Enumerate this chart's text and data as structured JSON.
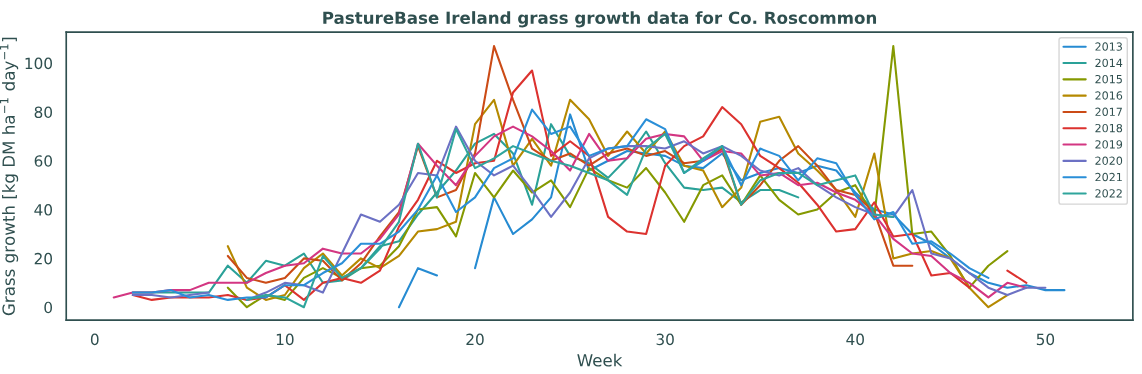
{
  "chart_data": {
    "type": "line",
    "title": "PastureBase Ireland grass growth data for Co. Roscommon",
    "xlabel": "Week",
    "ylabel": "Grass growth [kg DM ha$^{−1}$ day$^{−1}$]",
    "xlim": [
      -1.5,
      54.6
    ],
    "xticks": [
      0,
      10,
      20,
      30,
      40,
      50
    ],
    "ylim": [
      -5.3,
      112.7
    ],
    "yticks": [
      0,
      20,
      40,
      60,
      80,
      100
    ],
    "grid": false,
    "legend": "top right",
    "marker": "none",
    "line_style": "solid",
    "series": [
      {
        "name": "2013",
        "color": "#268bd2",
        "x": [
          16,
          17,
          18,
          19,
          20,
          21,
          22,
          23,
          24,
          25,
          26,
          27,
          28,
          29,
          30,
          31,
          32,
          33,
          34,
          35,
          36,
          37,
          38,
          39,
          40,
          41,
          42,
          43,
          44,
          45,
          46,
          47,
          48,
          49,
          50,
          51
        ],
        "values": [
          0,
          16,
          13,
          null,
          16,
          45,
          30,
          36,
          45,
          79,
          56,
          60,
          64,
          63,
          62,
          58,
          57,
          63,
          52,
          55,
          57,
          55,
          58,
          56,
          47,
          40,
          38,
          30,
          26,
          20,
          14,
          10,
          8,
          9,
          7,
          7
        ]
      },
      {
        "name": "2014",
        "color": "#2aa198",
        "x": [
          2,
          3,
          4,
          5,
          6,
          7,
          8,
          9,
          10,
          11,
          12,
          13,
          14,
          15,
          16,
          17,
          18,
          19,
          20,
          21,
          22,
          23,
          24,
          25,
          26,
          27,
          28,
          29,
          30,
          31,
          32,
          33,
          34,
          35,
          36,
          37
        ],
        "values": [
          6,
          6,
          6,
          6,
          6,
          17,
          10,
          19,
          17,
          22,
          10,
          11,
          16,
          25,
          27,
          38,
          47,
          56,
          67,
          71,
          63,
          42,
          75,
          62,
          59,
          53,
          61,
          72,
          59,
          49,
          48,
          49,
          43,
          48,
          48,
          45
        ]
      },
      {
        "name": "2015",
        "color": "#859900",
        "x": [
          7,
          8,
          9,
          10,
          11,
          12,
          13,
          14,
          15,
          16,
          17,
          18,
          19,
          20,
          21,
          22,
          23,
          24,
          25,
          26,
          27,
          28,
          29,
          30,
          31,
          32,
          33,
          34,
          35,
          36,
          37,
          38,
          39,
          40,
          41,
          42,
          43,
          44,
          45,
          46,
          47,
          48
        ],
        "values": [
          8,
          0,
          5,
          3,
          12,
          16,
          12,
          16,
          17,
          25,
          40,
          41,
          29,
          55,
          45,
          56,
          47,
          52,
          41,
          57,
          52,
          49,
          57,
          47,
          35,
          50,
          54,
          42,
          54,
          44,
          38,
          40,
          47,
          50,
          37,
          107,
          30,
          31,
          21,
          8,
          17,
          23
        ]
      },
      {
        "name": "2016",
        "color": "#b58900",
        "x": [
          7,
          8,
          9,
          10,
          11,
          12,
          13,
          14,
          15,
          16,
          17,
          18,
          19,
          20,
          21,
          22,
          23,
          24,
          25,
          26,
          27,
          28,
          29,
          30,
          31,
          32,
          33,
          34,
          35,
          36,
          37,
          38,
          39,
          40,
          41,
          42,
          43,
          44,
          45,
          46,
          47,
          48
        ],
        "values": [
          25,
          8,
          3,
          5,
          16,
          22,
          13,
          20,
          16,
          21,
          31,
          32,
          35,
          75,
          85,
          58,
          69,
          58,
          85,
          77,
          62,
          72,
          63,
          72,
          58,
          56,
          41,
          49,
          76,
          78,
          63,
          56,
          48,
          37,
          63,
          20,
          22,
          23,
          20,
          8,
          0,
          5
        ]
      },
      {
        "name": "2017",
        "color": "#cb4b16",
        "x": [
          7,
          8,
          9,
          10,
          11,
          12,
          13,
          14,
          15,
          16,
          17,
          18,
          19,
          20,
          21,
          22,
          23,
          24,
          25,
          26,
          27,
          28,
          29,
          30,
          31,
          32,
          33,
          34,
          35,
          36,
          37,
          38,
          39,
          40,
          41,
          42,
          43
        ],
        "values": [
          21,
          12,
          10,
          12,
          20,
          19,
          11,
          18,
          29,
          39,
          66,
          45,
          48,
          63,
          107,
          85,
          65,
          60,
          63,
          58,
          63,
          65,
          62,
          64,
          59,
          60,
          65,
          42,
          50,
          60,
          66,
          58,
          48,
          46,
          39,
          17,
          17
        ]
      },
      {
        "name": "2018",
        "color": "#dc322f",
        "x": [
          2,
          3,
          4,
          5,
          6,
          7,
          8,
          9,
          10,
          11,
          12,
          13,
          14,
          15,
          16,
          17,
          18,
          19,
          20,
          21,
          22,
          23,
          24,
          25,
          26,
          27,
          28,
          29,
          30,
          31,
          32,
          33,
          34,
          35,
          36,
          37,
          38,
          39,
          40,
          41,
          42,
          43,
          44,
          45,
          46,
          47,
          48,
          49
        ],
        "values": [
          5,
          3,
          4,
          4,
          4,
          5,
          3,
          4,
          9,
          3,
          10,
          12,
          10,
          15,
          33,
          44,
          60,
          55,
          59,
          60,
          88,
          97,
          62,
          68,
          62,
          37,
          31,
          30,
          58,
          66,
          70,
          82,
          75,
          62,
          57,
          51,
          42,
          31,
          32,
          43,
          29,
          30,
          13,
          14,
          8,
          null,
          15,
          10
        ]
      },
      {
        "name": "2019",
        "color": "#d33682",
        "x": [
          1,
          2,
          3,
          4,
          5,
          6,
          7,
          8,
          9,
          10,
          11,
          12,
          13,
          14,
          15,
          16,
          17,
          18,
          19,
          20,
          21,
          22,
          23,
          24,
          25,
          26,
          27,
          28,
          29,
          30,
          31,
          32,
          33,
          34,
          35,
          36,
          37,
          38,
          39,
          40,
          41,
          42,
          43,
          44,
          45,
          46,
          47,
          48,
          49
        ],
        "values": [
          4,
          6,
          6,
          7,
          7,
          10,
          10,
          10,
          14,
          17,
          18,
          24,
          22,
          22,
          28,
          38,
          67,
          58,
          50,
          62,
          70,
          74,
          70,
          64,
          56,
          71,
          60,
          61,
          69,
          71,
          70,
          60,
          64,
          63,
          54,
          55,
          50,
          51,
          47,
          44,
          38,
          28,
          22,
          21,
          14,
          10,
          4,
          10,
          8
        ]
      },
      {
        "name": "2020",
        "color": "#6c71c4",
        "x": [
          2,
          3,
          4,
          5,
          6,
          7,
          8,
          9,
          10,
          11,
          12,
          13,
          14,
          15,
          16,
          17,
          18,
          19,
          20,
          21,
          22,
          23,
          24,
          25,
          26,
          27,
          28,
          29,
          30,
          31,
          32,
          33,
          34,
          35,
          36,
          37,
          38,
          39,
          40,
          41,
          42,
          43,
          44,
          45,
          46,
          47,
          48,
          49,
          50
        ],
        "values": [
          5,
          5,
          4,
          5,
          6,
          null,
          3,
          6,
          10,
          9,
          6,
          22,
          38,
          35,
          42,
          55,
          54,
          74,
          60,
          54,
          58,
          48,
          37,
          47,
          61,
          65,
          66,
          66,
          65,
          68,
          63,
          66,
          62,
          56,
          54,
          57,
          50,
          45,
          41,
          38,
          37,
          48,
          22,
          20,
          14,
          8,
          5,
          8,
          8
        ]
      },
      {
        "name": "2021",
        "color": "#2a8fd8",
        "x": [
          2,
          3,
          4,
          5,
          6,
          7,
          8,
          9,
          10,
          11,
          12,
          13,
          14,
          15,
          16,
          17,
          18,
          19,
          20,
          21,
          22,
          23,
          24,
          25,
          26,
          27,
          28,
          29,
          30,
          31,
          32,
          33,
          34,
          35,
          36,
          37,
          38,
          39,
          40,
          41,
          42,
          43,
          44,
          45,
          46,
          47
        ],
        "values": [
          6,
          6,
          7,
          4,
          5,
          3,
          4,
          4,
          9,
          9,
          14,
          18,
          26,
          26,
          31,
          40,
          54,
          39,
          45,
          57,
          61,
          81,
          71,
          74,
          62,
          65,
          66,
          77,
          73,
          55,
          60,
          66,
          50,
          65,
          62,
          52,
          61,
          59,
          46,
          36,
          39,
          26,
          27,
          22,
          16,
          12
        ]
      },
      {
        "name": "2022",
        "color": "#2fa59c",
        "x": [
          8,
          9,
          10,
          11,
          12,
          13,
          14,
          15,
          16,
          17,
          18,
          19,
          20,
          21,
          22,
          23,
          24,
          25,
          26,
          27,
          28,
          29,
          30,
          31,
          32,
          33,
          34,
          35,
          36,
          37,
          38,
          39,
          40,
          41,
          42
        ],
        "values": [
          3,
          5,
          4,
          0,
          21,
          12,
          16,
          24,
          35,
          67,
          45,
          73,
          57,
          61,
          66,
          63,
          60,
          58,
          55,
          52,
          46,
          65,
          71,
          55,
          61,
          66,
          42,
          52,
          55,
          55,
          50,
          52,
          54,
          38,
          37
        ]
      }
    ]
  }
}
